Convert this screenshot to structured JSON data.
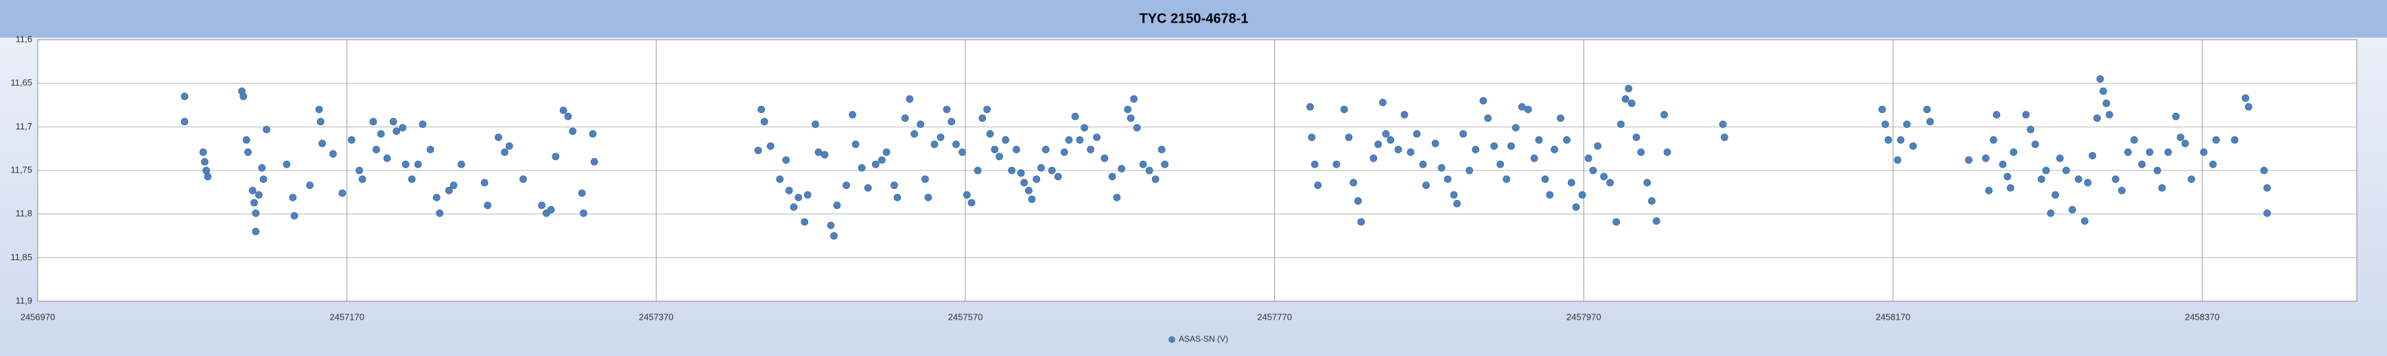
{
  "chart_data": {
    "type": "scatter",
    "title": "TYC 2150-4678-1",
    "x": [
      2457065,
      2457065,
      2457077,
      2457078,
      2457079,
      2457080,
      2457102,
      2457103,
      2457105,
      2457106,
      2457109,
      2457110,
      2457111,
      2457111,
      2457113,
      2457115,
      2457116,
      2457118,
      2457131,
      2457135,
      2457136,
      2457146,
      2457152,
      2457153,
      2457154,
      2457161,
      2457167,
      2457173,
      2457178,
      2457180,
      2457187,
      2457189,
      2457192,
      2457196,
      2457200,
      2457202,
      2457206,
      2457208,
      2457212,
      2457216,
      2457219,
      2457224,
      2457228,
      2457230,
      2457236,
      2457239,
      2457244,
      2457259,
      2457261,
      2457268,
      2457272,
      2457275,
      2457284,
      2457296,
      2457299,
      2457302,
      2457305,
      2457310,
      2457313,
      2457316,
      2457322,
      2457323,
      2457329,
      2457330,
      2457436,
      2457438,
      2457440,
      2457444,
      2457450,
      2457454,
      2457456,
      2457459,
      2457462,
      2457466,
      2457468,
      2457473,
      2457475,
      2457479,
      2457483,
      2457485,
      2457487,
      2457493,
      2457497,
      2457499,
      2457503,
      2457507,
      2457512,
      2457516,
      2457519,
      2457524,
      2457526,
      2457531,
      2457534,
      2457537,
      2457541,
      2457544,
      2457546,
      2457550,
      2457554,
      2457558,
      2457561,
      2457564,
      2457568,
      2457571,
      2457574,
      2457578,
      2457581,
      2457584,
      2457586,
      2457589,
      2457592,
      2457596,
      2457600,
      2457603,
      2457606,
      2457608,
      2457611,
      2457613,
      2457616,
      2457619,
      2457622,
      2457626,
      2457630,
      2457634,
      2457637,
      2457641,
      2457644,
      2457647,
      2457651,
      2457655,
      2457660,
      2457665,
      2457668,
      2457671,
      2457675,
      2457677,
      2457679,
      2457681,
      2457685,
      2457689,
      2457693,
      2457697,
      2457699,
      2457793,
      2457794,
      2457796,
      2457798,
      2457810,
      2457815,
      2457818,
      2457821,
      2457824,
      2457826,
      2457834,
      2457837,
      2457840,
      2457842,
      2457845,
      2457850,
      2457854,
      2457858,
      2457862,
      2457866,
      2457868,
      2457874,
      2457878,
      2457882,
      2457886,
      2457888,
      2457892,
      2457896,
      2457900,
      2457905,
      2457908,
      2457912,
      2457916,
      2457920,
      2457923,
      2457926,
      2457930,
      2457934,
      2457938,
      2457941,
      2457945,
      2457948,
      2457951,
      2457955,
      2457959,
      2457962,
      2457965,
      2457969,
      2457973,
      2457976,
      2457979,
      2457983,
      2457987,
      2457991,
      2457994,
      2457997,
      2457999,
      2458001,
      2458004,
      2458007,
      2458011,
      2458014,
      2458017,
      2458022,
      2458024,
      2458060,
      2458061,
      2458163,
      2458165,
      2458167,
      2458173,
      2458175,
      2458179,
      2458183,
      2458192,
      2458194,
      2458219,
      2458230,
      2458232,
      2458235,
      2458237,
      2458241,
      2458244,
      2458246,
      2458248,
      2458256,
      2458259,
      2458262,
      2458266,
      2458269,
      2458272,
      2458275,
      2458278,
      2458282,
      2458286,
      2458290,
      2458294,
      2458296,
      2458299,
      2458302,
      2458304,
      2458306,
      2458308,
      2458310,
      2458314,
      2458318,
      2458322,
      2458326,
      2458331,
      2458336,
      2458341,
      2458344,
      2458348,
      2458353,
      2458356,
      2458359,
      2458363,
      2458371,
      2458377,
      2458379,
      2458391,
      2458398,
      2458400,
      2458410,
      2458412,
      2458412
    ],
    "series": [
      {
        "name": "ASAS-SN (V)",
        "color": "#4f81bd",
        "values": [
          11.665,
          11.694,
          11.729,
          11.74,
          11.75,
          11.757,
          11.659,
          11.665,
          11.715,
          11.729,
          11.773,
          11.787,
          11.799,
          11.82,
          11.778,
          11.747,
          11.76,
          11.703,
          11.743,
          11.781,
          11.802,
          11.767,
          11.68,
          11.694,
          11.719,
          11.731,
          11.776,
          11.715,
          11.75,
          11.76,
          11.694,
          11.726,
          11.708,
          11.736,
          11.694,
          11.705,
          11.701,
          11.743,
          11.76,
          11.743,
          11.697,
          11.726,
          11.781,
          11.799,
          11.773,
          11.767,
          11.743,
          11.764,
          11.79,
          11.712,
          11.729,
          11.722,
          11.76,
          11.79,
          11.799,
          11.795,
          11.734,
          11.681,
          11.688,
          11.705,
          11.776,
          11.799,
          11.708,
          11.74,
          11.727,
          11.68,
          11.694,
          11.722,
          11.76,
          11.738,
          11.773,
          11.792,
          11.781,
          11.809,
          11.778,
          11.697,
          11.729,
          11.732,
          11.813,
          11.825,
          11.79,
          11.767,
          11.686,
          11.72,
          11.747,
          11.77,
          11.743,
          11.738,
          11.729,
          11.767,
          11.781,
          11.69,
          11.668,
          11.708,
          11.697,
          11.76,
          11.781,
          11.72,
          11.712,
          11.68,
          11.694,
          11.72,
          11.729,
          11.778,
          11.787,
          11.75,
          11.69,
          11.68,
          11.708,
          11.726,
          11.734,
          11.715,
          11.75,
          11.726,
          11.753,
          11.764,
          11.773,
          11.783,
          11.76,
          11.747,
          11.726,
          11.75,
          11.757,
          11.729,
          11.715,
          11.688,
          11.715,
          11.701,
          11.726,
          11.712,
          11.736,
          11.757,
          11.781,
          11.748,
          11.68,
          11.69,
          11.668,
          11.701,
          11.743,
          11.75,
          11.76,
          11.726,
          11.743,
          11.677,
          11.712,
          11.743,
          11.767,
          11.743,
          11.68,
          11.712,
          11.764,
          11.785,
          11.809,
          11.736,
          11.72,
          11.672,
          11.708,
          11.715,
          11.726,
          11.686,
          11.729,
          11.708,
          11.743,
          11.767,
          11.719,
          11.747,
          11.76,
          11.778,
          11.788,
          11.708,
          11.75,
          11.726,
          11.67,
          11.69,
          11.722,
          11.743,
          11.76,
          11.722,
          11.701,
          11.677,
          11.68,
          11.736,
          11.715,
          11.76,
          11.778,
          11.726,
          11.69,
          11.715,
          11.764,
          11.792,
          11.778,
          11.736,
          11.75,
          11.722,
          11.757,
          11.764,
          11.809,
          11.697,
          11.668,
          11.656,
          11.673,
          11.712,
          11.729,
          11.764,
          11.785,
          11.808,
          11.686,
          11.729,
          11.697,
          11.712,
          11.68,
          11.697,
          11.715,
          11.738,
          11.715,
          11.697,
          11.722,
          11.68,
          11.694,
          11.738,
          11.736,
          11.773,
          11.715,
          11.686,
          11.743,
          11.757,
          11.77,
          11.729,
          11.686,
          11.703,
          11.72,
          11.76,
          11.75,
          11.799,
          11.778,
          11.736,
          11.75,
          11.795,
          11.76,
          11.808,
          11.764,
          11.733,
          11.69,
          11.645,
          11.659,
          11.673,
          11.686,
          11.76,
          11.773,
          11.729,
          11.715,
          11.743,
          11.729,
          11.75,
          11.77,
          11.729,
          11.688,
          11.712,
          11.719,
          11.76,
          11.729,
          11.743,
          11.715,
          11.715,
          11.667,
          11.677,
          11.75,
          11.77,
          11.799
        ]
      }
    ],
    "xlim": [
      2456970,
      2458470
    ],
    "xticks": [
      2456970,
      2457170,
      2457370,
      2457570,
      2457770,
      2457970,
      2458170,
      2458370
    ],
    "ylim": [
      11.9,
      11.6
    ],
    "yticks": [
      {
        "value": 11.6,
        "label": "11,6"
      },
      {
        "value": 11.65,
        "label": "11,65"
      },
      {
        "value": 11.7,
        "label": "11,7"
      },
      {
        "value": 11.75,
        "label": "11,75"
      },
      {
        "value": 11.8,
        "label": "11,8"
      },
      {
        "value": 11.85,
        "label": "11,85"
      },
      {
        "value": 11.9,
        "label": "11,9"
      }
    ],
    "grid": true
  }
}
